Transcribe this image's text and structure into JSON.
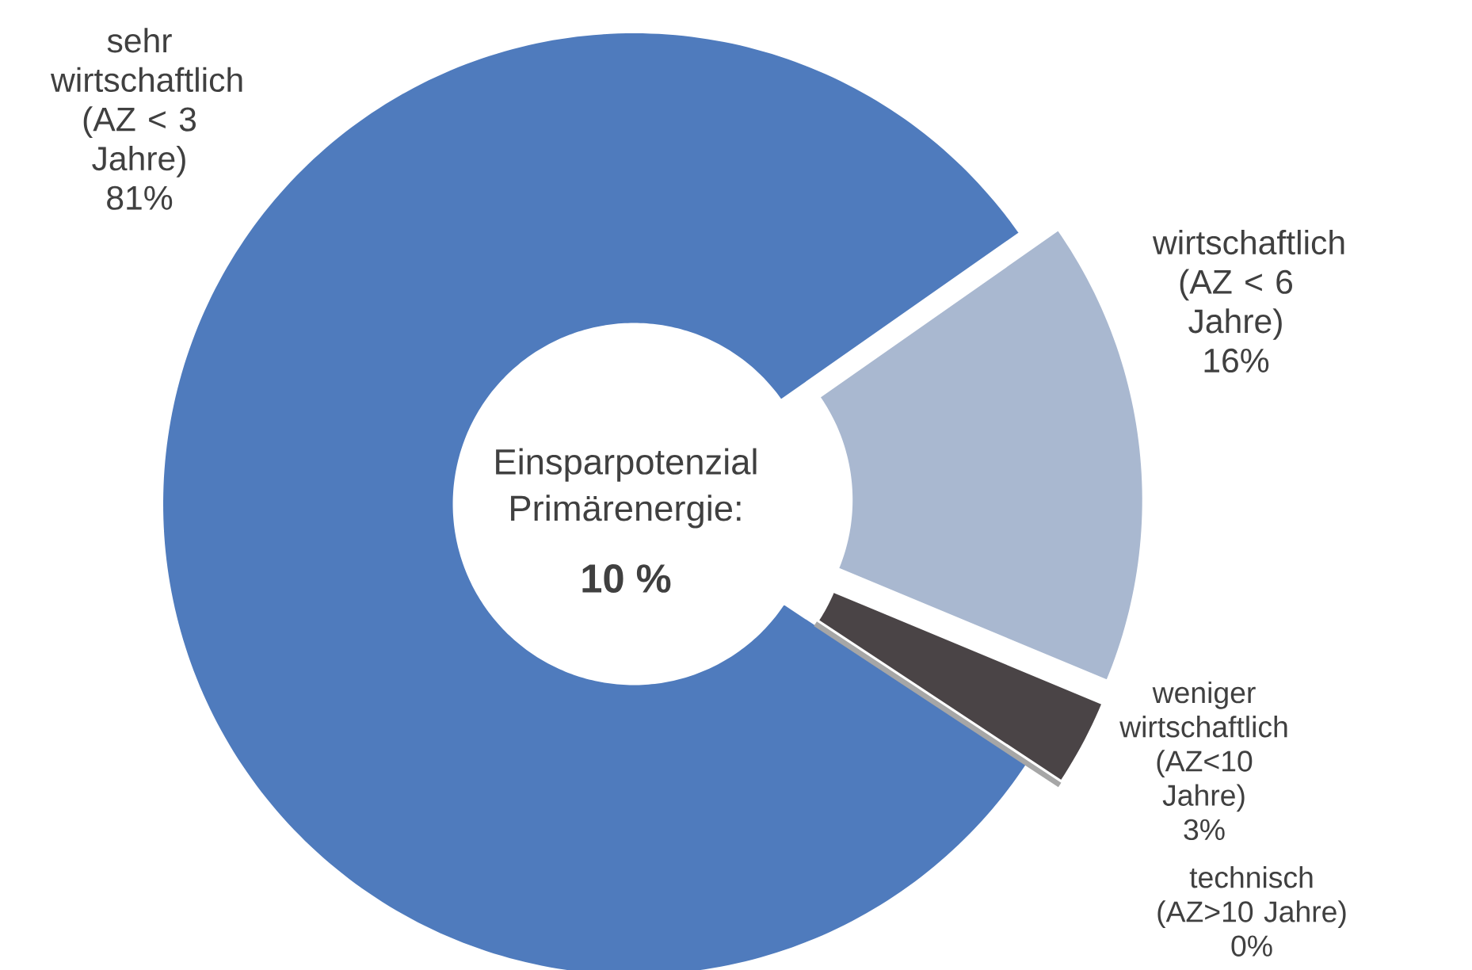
{
  "chart_data": {
    "type": "donut",
    "categories": [
      "sehr wirtschaftlich (AZ < 3 Jahre)",
      "wirtschaftlich (AZ < 6 Jahre)",
      "weniger wirtschaftlich (AZ<10 Jahre)",
      "technisch (AZ>10 Jahre)"
    ],
    "values": [
      81,
      16,
      3,
      0
    ],
    "value_labels": [
      "81%",
      "16%",
      "3%",
      "0%"
    ],
    "colors": [
      "#4f7bbd",
      "#a9b8d0",
      "#4a4446",
      "#a6a6a6"
    ],
    "annotations": [
      "Einsparpotenzial Primärenergie:",
      "10 %"
    ]
  }
}
